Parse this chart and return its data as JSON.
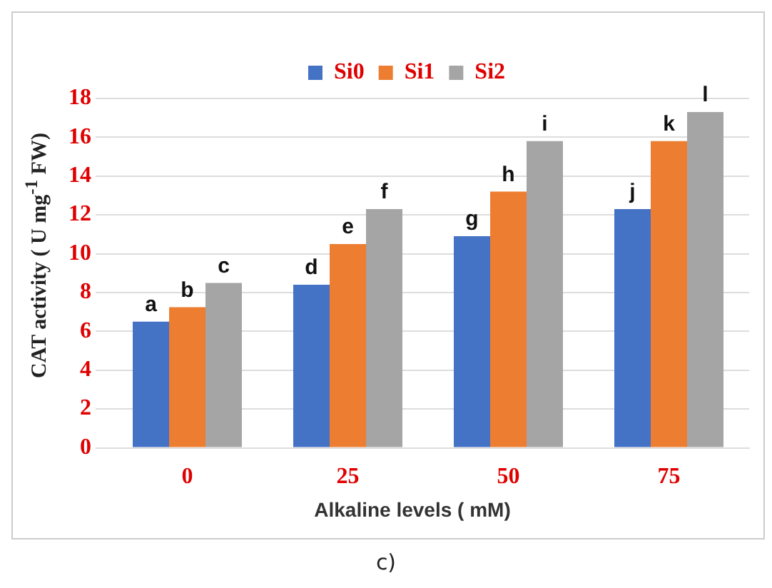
{
  "chart_data": {
    "type": "bar",
    "xlabel": "Alkaline levels ( mM)",
    "ylabel": "CAT activity ( U mg$^{-1}$ FW)",
    "categories": [
      "0",
      "25",
      "50",
      "75"
    ],
    "series": [
      {
        "name": "Si0",
        "color": "#4472c4",
        "values": [
          6.5,
          8.4,
          10.9,
          12.3
        ],
        "value_labels": [
          "a",
          "d",
          "g",
          "j"
        ]
      },
      {
        "name": "Si1",
        "color": "#ed7d31",
        "values": [
          7.25,
          10.5,
          13.2,
          15.8
        ],
        "value_labels": [
          "b",
          "e",
          "h",
          "k"
        ]
      },
      {
        "name": "Si2",
        "color": "#a5a5a5",
        "values": [
          8.5,
          12.3,
          15.8,
          17.3
        ],
        "value_labels": [
          "c",
          "f",
          "i",
          "l"
        ]
      }
    ],
    "ylim": [
      0,
      18
    ],
    "yticks": [
      0,
      2,
      4,
      6,
      8,
      10,
      12,
      14,
      16,
      18
    ],
    "grid": "y",
    "legend": "top",
    "annotations": [
      "c)"
    ]
  }
}
